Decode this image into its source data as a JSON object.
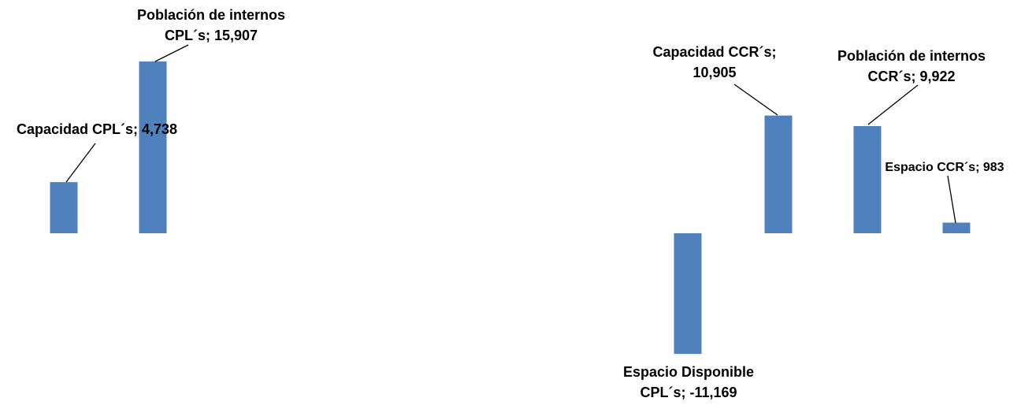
{
  "chart_data": {
    "type": "bar",
    "categories": [
      "Capacidad CPL´s",
      "Población de internos CPL´s",
      "Espacio Disponible CPL´s",
      "Capacidad CCR´s",
      "Población de internos CCR´s",
      "Espacio CCR´s"
    ],
    "values": [
      4738,
      15907,
      -11169,
      10905,
      9922,
      983
    ],
    "data_labels": [
      [
        "Capacidad CPL´s; 4,738"
      ],
      [
        "Población de internos",
        "CPL´s; 15,907"
      ],
      [
        "Espacio Disponible",
        "CPL´s; -11,169"
      ],
      [
        "Capacidad CCR´s;",
        "10,905"
      ],
      [
        "Población de internos",
        "CCR´s; 9,922"
      ],
      [
        "Espacio CCR´s; 983"
      ]
    ],
    "bar_color": "#4F81BD",
    "title": "",
    "xlabel": "",
    "ylabel": "",
    "ylim": [
      -16000,
      16000
    ],
    "grid": false,
    "legend": "none"
  }
}
